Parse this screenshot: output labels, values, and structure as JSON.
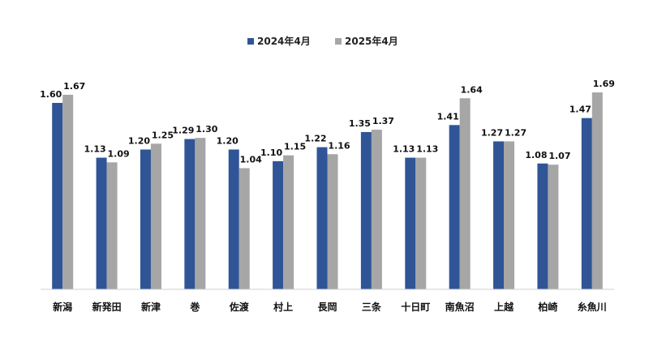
{
  "chart_data": {
    "type": "bar",
    "title": "",
    "xlabel": "",
    "ylabel": "",
    "ylim": [
      0,
      1.8
    ],
    "grid": false,
    "legend_position": "top-center",
    "categories": [
      "新潟",
      "新発田",
      "新津",
      "巻",
      "佐渡",
      "村上",
      "長岡",
      "三条",
      "十日町",
      "南魚沼",
      "上越",
      "柏崎",
      "糸魚川"
    ],
    "series": [
      {
        "name": "2024年4月",
        "color": "#2F5597",
        "values": [
          1.6,
          1.13,
          1.2,
          1.29,
          1.2,
          1.1,
          1.22,
          1.35,
          1.13,
          1.41,
          1.27,
          1.08,
          1.47
        ],
        "labels": [
          "1.60",
          "1.13",
          "1.20",
          "1.29",
          "1.20",
          "1.10",
          "1.22",
          "1.35",
          "1.13",
          "1.41",
          "1.27",
          "1.08",
          "1.47"
        ]
      },
      {
        "name": "2025年4月",
        "color": "#A6A6A6",
        "values": [
          1.67,
          1.09,
          1.25,
          1.3,
          1.04,
          1.15,
          1.16,
          1.37,
          1.13,
          1.64,
          1.27,
          1.07,
          1.69
        ],
        "labels": [
          "1.67",
          "1.09",
          "1.25",
          "1.30",
          "1.04",
          "1.15",
          "1.16",
          "1.37",
          "1.13",
          "1.64",
          "1.27",
          "1.07",
          "1.69"
        ]
      }
    ]
  }
}
